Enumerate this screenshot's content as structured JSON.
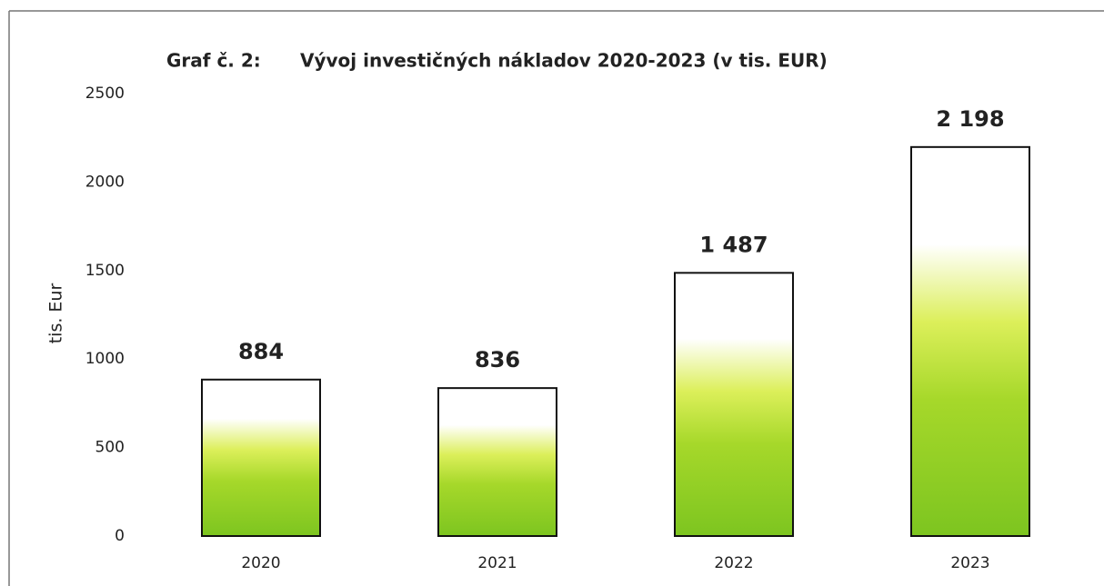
{
  "chart_data": {
    "type": "bar",
    "label": "Graf č. 2:",
    "title": "Vývoj investičných nákladov 2020-2023 (v tis. EUR)",
    "y_label": "tis. Eur",
    "categories": [
      "2020",
      "2021",
      "2022",
      "2023"
    ],
    "values": [
      884,
      836,
      1487,
      2198
    ],
    "value_labels": [
      "884",
      "836",
      "1 487",
      "2 198"
    ],
    "color": "#7dc520",
    "ylim": [
      0,
      2500
    ],
    "yticks": [
      0,
      500,
      1000,
      1500,
      2000,
      2500
    ],
    "grid": false
  }
}
